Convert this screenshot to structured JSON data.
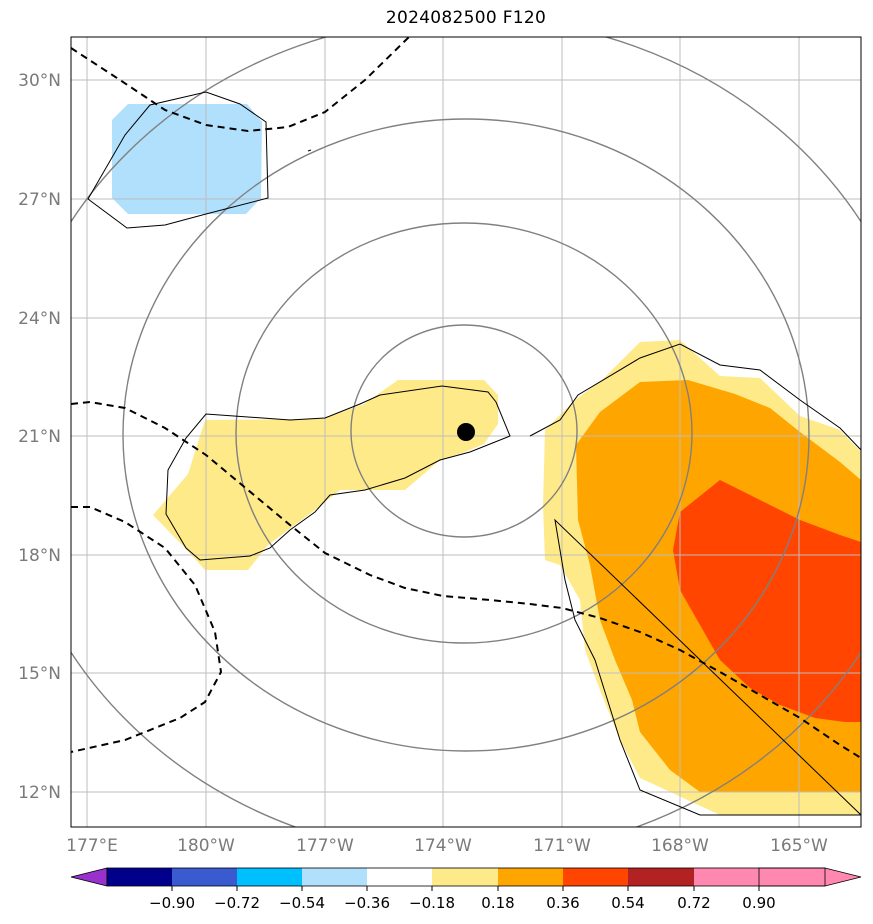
{
  "title": "2024082500 F120",
  "map": {
    "lat_labels": [
      "30°N",
      "27°N",
      "24°N",
      "21°N",
      "18°N",
      "15°N",
      "12°N"
    ],
    "lon_labels": [
      "177°E",
      "180°W",
      "177°W",
      "174°W",
      "171°W",
      "168°W",
      "165°W"
    ]
  },
  "colorbar": {
    "tick_labels": [
      "−0.90",
      "−0.72",
      "−0.54",
      "−0.36",
      "−0.18",
      "0.18",
      "0.36",
      "0.54",
      "0.72",
      "0.90"
    ],
    "colors": [
      "#9932cc",
      "#00008b",
      "#3a5bd0",
      "#00bfff",
      "#b0e0fc",
      "#ffffff",
      "#ffea8a",
      "#ffa500",
      "#ff4500",
      "#b22222",
      "#ff88b0"
    ]
  },
  "colors": {
    "positive_low": "#ffea8a",
    "positive_mid": "#ffa500",
    "positive_high": "#ff4500",
    "negative_low": "#b0e0fc",
    "range_ring": "#808080",
    "grid": "#bdbdbd"
  },
  "storm_center": {
    "lat": 21.1,
    "lon": -173.4
  }
}
